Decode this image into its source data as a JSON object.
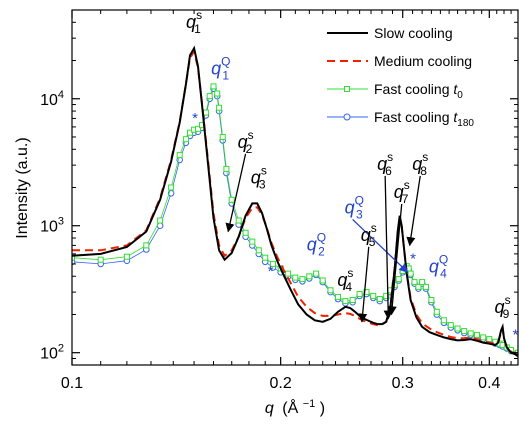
{
  "chart_data": {
    "type": "line",
    "xlabel": "q (Å⁻¹)",
    "xlabel_var": "q",
    "xlabel_unit": "(Å",
    "xlabel_unit_sup": "−1",
    "xlabel_unit_end": ")",
    "ylabel": "Intensity (a.u.)",
    "x_scale": "log",
    "y_scale": "log",
    "xlim": [
      0.1,
      0.44
    ],
    "ylim": [
      80,
      50000
    ],
    "grid": false,
    "legend_position": "top-right",
    "x_ticks": [
      {
        "value": 0.1,
        "label": "0.1"
      },
      {
        "value": 0.2,
        "label": "0.2"
      },
      {
        "value": 0.3,
        "label": "0.3"
      },
      {
        "value": 0.4,
        "label": "0.4"
      }
    ],
    "y_ticks": [
      {
        "value": 100,
        "base": "10",
        "exp": "2"
      },
      {
        "value": 1000,
        "base": "10",
        "exp": "3"
      },
      {
        "value": 10000,
        "base": "10",
        "exp": "4"
      }
    ],
    "series": [
      {
        "name": "Slow cooling",
        "legend_label": "Slow cooling",
        "color": "#000000",
        "style": "solid",
        "x": [
          0.1,
          0.11,
          0.12,
          0.128,
          0.134,
          0.139,
          0.143,
          0.146,
          0.148,
          0.15,
          0.152,
          0.154,
          0.157,
          0.16,
          0.163,
          0.166,
          0.17,
          0.174,
          0.178,
          0.182,
          0.185,
          0.188,
          0.191,
          0.194,
          0.198,
          0.202,
          0.207,
          0.212,
          0.218,
          0.224,
          0.23,
          0.236,
          0.242,
          0.248,
          0.252,
          0.256,
          0.26,
          0.264,
          0.268,
          0.272,
          0.276,
          0.28,
          0.284,
          0.288,
          0.292,
          0.295,
          0.297,
          0.299,
          0.301,
          0.304,
          0.308,
          0.314,
          0.32,
          0.328,
          0.336,
          0.344,
          0.352,
          0.36,
          0.368,
          0.376,
          0.384,
          0.392,
          0.4,
          0.408,
          0.412,
          0.416,
          0.418,
          0.42,
          0.424,
          0.43,
          0.44
        ],
        "y": [
          580,
          600,
          680,
          900,
          1600,
          3200,
          6500,
          13000,
          22000,
          25000,
          18000,
          9000,
          3200,
          1150,
          640,
          540,
          610,
          820,
          1200,
          1500,
          1500,
          1260,
          950,
          700,
          520,
          410,
          310,
          240,
          200,
          180,
          175,
          185,
          210,
          230,
          225,
          210,
          195,
          185,
          178,
          172,
          168,
          168,
          175,
          230,
          450,
          900,
          1200,
          1000,
          700,
          420,
          260,
          190,
          160,
          145,
          138,
          132,
          128,
          125,
          126,
          128,
          124,
          120,
          118,
          115,
          120,
          150,
          160,
          130,
          110,
          100,
          95
        ]
      },
      {
        "name": "Medium cooling",
        "legend_label": "Medium cooling",
        "color": "#ee2200",
        "style": "dashed",
        "x": [
          0.1,
          0.11,
          0.12,
          0.128,
          0.134,
          0.139,
          0.143,
          0.146,
          0.148,
          0.15,
          0.152,
          0.154,
          0.157,
          0.16,
          0.163,
          0.166,
          0.17,
          0.174,
          0.178,
          0.182,
          0.185,
          0.188,
          0.191,
          0.194,
          0.198,
          0.202,
          0.207,
          0.212,
          0.218,
          0.224,
          0.23,
          0.236,
          0.242,
          0.248,
          0.252,
          0.256,
          0.26,
          0.264,
          0.268,
          0.272,
          0.276,
          0.28,
          0.284,
          0.288,
          0.292,
          0.295,
          0.297,
          0.299,
          0.301,
          0.304,
          0.308,
          0.314,
          0.32,
          0.328,
          0.336,
          0.344,
          0.352,
          0.36,
          0.368,
          0.376,
          0.384,
          0.392,
          0.4,
          0.408,
          0.412,
          0.416,
          0.418,
          0.42,
          0.424,
          0.43,
          0.44
        ],
        "y": [
          640,
          640,
          700,
          920,
          1650,
          3300,
          6600,
          13000,
          21000,
          23500,
          17500,
          9200,
          3400,
          1250,
          700,
          580,
          640,
          820,
          1150,
          1380,
          1400,
          1220,
          960,
          730,
          560,
          450,
          350,
          275,
          230,
          205,
          195,
          195,
          200,
          205,
          202,
          195,
          185,
          178,
          172,
          168,
          165,
          166,
          175,
          235,
          460,
          880,
          1150,
          980,
          700,
          430,
          270,
          200,
          170,
          155,
          145,
          138,
          133,
          130,
          130,
          132,
          128,
          123,
          120,
          117,
          120,
          145,
          155,
          128,
          110,
          102,
          96
        ]
      },
      {
        "name": "Fast cooling t0",
        "legend_label": "Fast cooling ",
        "legend_var": "t",
        "legend_sub": "0",
        "color": "#33dd33",
        "style": "squares",
        "x": [
          0.1,
          0.11,
          0.12,
          0.128,
          0.134,
          0.139,
          0.143,
          0.146,
          0.148,
          0.15,
          0.152,
          0.154,
          0.156,
          0.158,
          0.16,
          0.162,
          0.163,
          0.165,
          0.167,
          0.17,
          0.174,
          0.178,
          0.182,
          0.186,
          0.19,
          0.195,
          0.2,
          0.205,
          0.21,
          0.215,
          0.22,
          0.225,
          0.23,
          0.236,
          0.242,
          0.248,
          0.254,
          0.26,
          0.266,
          0.272,
          0.278,
          0.284,
          0.288,
          0.292,
          0.296,
          0.3,
          0.304,
          0.306,
          0.308,
          0.312,
          0.316,
          0.32,
          0.324,
          0.33,
          0.336,
          0.344,
          0.352,
          0.36,
          0.368,
          0.376,
          0.384,
          0.392,
          0.4,
          0.408,
          0.414,
          0.418,
          0.424,
          0.43,
          0.44
        ],
        "y": [
          560,
          540,
          570,
          700,
          1100,
          2000,
          3600,
          4800,
          5400,
          5700,
          5800,
          6200,
          7800,
          10500,
          12500,
          11000,
          8500,
          5000,
          2800,
          1600,
          1100,
          880,
          750,
          640,
          560,
          500,
          460,
          420,
          390,
          380,
          400,
          420,
          370,
          310,
          275,
          255,
          260,
          290,
          300,
          280,
          265,
          280,
          310,
          340,
          380,
          440,
          480,
          460,
          420,
          360,
          330,
          360,
          330,
          260,
          210,
          180,
          165,
          155,
          148,
          142,
          138,
          132,
          128,
          122,
          118,
          115,
          110,
          105,
          100
        ]
      },
      {
        "name": "Fast cooling t180",
        "legend_label": "Fast cooling ",
        "legend_var": "t",
        "legend_sub": "180",
        "color": "#3366ee",
        "style": "circles",
        "x": [
          0.1,
          0.11,
          0.12,
          0.128,
          0.134,
          0.139,
          0.143,
          0.146,
          0.148,
          0.15,
          0.152,
          0.154,
          0.156,
          0.158,
          0.16,
          0.162,
          0.163,
          0.165,
          0.167,
          0.17,
          0.174,
          0.178,
          0.182,
          0.186,
          0.19,
          0.195,
          0.2,
          0.205,
          0.21,
          0.215,
          0.22,
          0.225,
          0.23,
          0.236,
          0.242,
          0.248,
          0.254,
          0.26,
          0.266,
          0.272,
          0.278,
          0.284,
          0.288,
          0.292,
          0.296,
          0.3,
          0.304,
          0.306,
          0.308,
          0.312,
          0.316,
          0.32,
          0.324,
          0.33,
          0.336,
          0.344,
          0.352,
          0.36,
          0.368,
          0.376,
          0.384,
          0.392,
          0.4,
          0.408,
          0.414,
          0.418,
          0.424,
          0.43,
          0.44
        ],
        "y": [
          520,
          500,
          530,
          650,
          1000,
          1800,
          3300,
          4500,
          5100,
          5400,
          5500,
          5900,
          7400,
          10000,
          12000,
          10500,
          8000,
          4700,
          2600,
          1500,
          1020,
          820,
          700,
          600,
          520,
          470,
          430,
          400,
          375,
          365,
          385,
          410,
          360,
          300,
          265,
          245,
          250,
          280,
          290,
          270,
          255,
          270,
          300,
          330,
          370,
          430,
          470,
          450,
          410,
          350,
          320,
          350,
          320,
          250,
          200,
          172,
          158,
          150,
          143,
          138,
          134,
          128,
          124,
          118,
          115,
          112,
          108,
          103,
          98
        ]
      }
    ],
    "annotations": [
      {
        "label": "q",
        "sup": "s",
        "sub": "1",
        "color": "#000000",
        "x": 0.15,
        "y": 36000
      },
      {
        "label": "q",
        "sup": "Q",
        "sub": "1",
        "color": "#2244cc",
        "x": 0.163,
        "y": 15500
      },
      {
        "label": "q",
        "sup": "s",
        "sub": "2",
        "color": "#000000",
        "x": 0.178,
        "y": 4100,
        "arrow_to": {
          "x": 0.168,
          "y": 900
        }
      },
      {
        "label": "q",
        "sup": "s",
        "sub": "3",
        "color": "#000000",
        "x": 0.186,
        "y": 2150
      },
      {
        "label": "q",
        "sup": "Q",
        "sub": "2",
        "color": "#2244cc",
        "x": 0.224,
        "y": 640
      },
      {
        "label": "q",
        "sup": "Q",
        "sub": "3",
        "color": "#2244cc",
        "x": 0.254,
        "y": 1250,
        "arrow_to": {
          "x": 0.305,
          "y": 430
        }
      },
      {
        "label": "q",
        "sup": "s",
        "sub": "4",
        "color": "#000000",
        "x": 0.248,
        "y": 335
      },
      {
        "label": "q",
        "sup": "s",
        "sub": "5",
        "color": "#000000",
        "x": 0.268,
        "y": 760,
        "arrow_to": {
          "x": 0.262,
          "y": 175
        }
      },
      {
        "label": "q",
        "sup": "s",
        "sub": "6",
        "color": "#000000",
        "x": 0.283,
        "y": 2750,
        "arrow_to": {
          "x": 0.286,
          "y": 185
        }
      },
      {
        "label": "q",
        "sup": "s",
        "sub": "7",
        "color": "#000000",
        "x": 0.299,
        "y": 1650,
        "arrow_to": {
          "x": 0.289,
          "y": 200
        }
      },
      {
        "label": "q",
        "sup": "s",
        "sub": "8",
        "color": "#000000",
        "x": 0.318,
        "y": 2750,
        "arrow_to": {
          "x": 0.307,
          "y": 700
        }
      },
      {
        "label": "q",
        "sup": "Q",
        "sub": "4",
        "color": "#2244cc",
        "x": 0.336,
        "y": 430
      },
      {
        "label": "q",
        "sup": "s",
        "sub": "9",
        "color": "#000000",
        "x": 0.418,
        "y": 205
      },
      {
        "label": "*",
        "color": "#2244cc",
        "x": 0.1505,
        "y": 7200
      },
      {
        "label": "*",
        "color": "#2244cc",
        "x": 0.1935,
        "y": 450
      },
      {
        "label": "*",
        "color": "#2244cc",
        "x": 0.3105,
        "y": 560
      },
      {
        "label": "*",
        "color": "#2244cc",
        "x": 0.4365,
        "y": 142
      }
    ]
  }
}
